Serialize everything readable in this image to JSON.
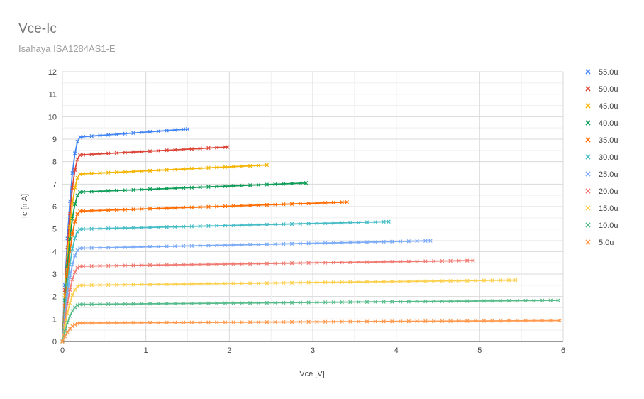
{
  "chart_data": {
    "type": "scatter",
    "title": "Vce-Ic",
    "subtitle": "Isahaya ISA1284AS1-E",
    "xlabel": "Vce [V]",
    "ylabel": "Ic [mA]",
    "xlim": [
      0,
      6
    ],
    "ylim": [
      0,
      12
    ],
    "xticks": [
      "0",
      "1",
      "2",
      "3",
      "4",
      "5",
      "6"
    ],
    "yticks": [
      "0",
      "1",
      "2",
      "3",
      "4",
      "5",
      "6",
      "7",
      "8",
      "9",
      "10",
      "11",
      "12"
    ],
    "grid": true,
    "legend_position": "right",
    "series": [
      {
        "name": "55.0u",
        "color": "#4285f4",
        "vmax": 1.5,
        "isat": 9.1,
        "iend": 9.45
      },
      {
        "name": "50.0u",
        "color": "#db4437",
        "vmax": 1.98,
        "isat": 8.3,
        "iend": 8.65
      },
      {
        "name": "45.0u",
        "color": "#f4b400",
        "vmax": 2.45,
        "isat": 7.45,
        "iend": 7.85
      },
      {
        "name": "40.0u",
        "color": "#0f9d58",
        "vmax": 2.92,
        "isat": 6.65,
        "iend": 7.05
      },
      {
        "name": "35.0u",
        "color": "#ff6d00",
        "vmax": 3.41,
        "isat": 5.8,
        "iend": 6.2
      },
      {
        "name": "30.0u",
        "color": "#46bdc6",
        "vmax": 3.91,
        "isat": 5.0,
        "iend": 5.33
      },
      {
        "name": "25.0u",
        "color": "#7baaf7",
        "vmax": 4.41,
        "isat": 4.15,
        "iend": 4.48
      },
      {
        "name": "20.0u",
        "color": "#f07b72",
        "vmax": 4.92,
        "isat": 3.35,
        "iend": 3.6
      },
      {
        "name": "15.0u",
        "color": "#fcd04f",
        "vmax": 5.43,
        "isat": 2.5,
        "iend": 2.73
      },
      {
        "name": "10.0u",
        "color": "#57bb8a",
        "vmax": 5.94,
        "isat": 1.65,
        "iend": 1.83
      },
      {
        "name": "5.0u",
        "color": "#ff994d",
        "vmax": 5.96,
        "isat": 0.82,
        "iend": 0.93
      }
    ]
  }
}
